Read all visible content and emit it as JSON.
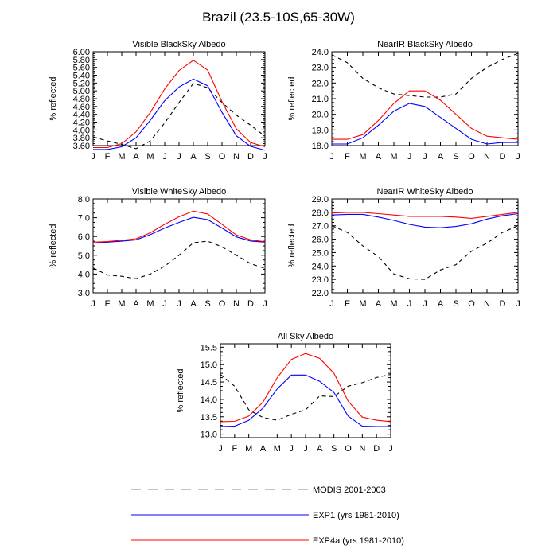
{
  "title": "Brazil (23.5-10S,65-30W)",
  "months": [
    "J",
    "F",
    "M",
    "A",
    "M",
    "J",
    "J",
    "A",
    "S",
    "O",
    "N",
    "D",
    "J"
  ],
  "legend": [
    {
      "label": "MODIS 2001-2003",
      "color": "#000000",
      "dash": true
    },
    {
      "label": "EXP1 (yrs 1981-2010)",
      "color": "#0000ff",
      "dash": false
    },
    {
      "label": "EXP4a (yrs 1981-2010)",
      "color": "#ff0000",
      "dash": false
    }
  ],
  "chart_data": [
    {
      "type": "line",
      "title": "Visible BlackSky Albedo",
      "ylabel": "% reflected",
      "ylim": [
        3.6,
        6.0
      ],
      "yticks": [
        3.6,
        3.8,
        4.0,
        4.2,
        4.4,
        4.6,
        4.8,
        5.0,
        5.2,
        5.4,
        5.6,
        5.8,
        6.0
      ],
      "ytick_labels": [
        "3.60",
        "3.80",
        "4.00",
        "4.20",
        "4.40",
        "4.60",
        "4.80",
        "5.00",
        "5.20",
        "5.40",
        "5.60",
        "5.80",
        "6.00"
      ],
      "series": [
        {
          "name": "MODIS 2001-2003",
          "values": [
            3.82,
            3.72,
            3.63,
            3.52,
            3.72,
            4.18,
            4.7,
            5.19,
            5.08,
            4.7,
            4.38,
            4.12,
            3.84
          ]
        },
        {
          "name": "EXP1 (yrs 1981-2010)",
          "values": [
            3.5,
            3.5,
            3.57,
            3.8,
            4.25,
            4.75,
            5.1,
            5.3,
            5.13,
            4.45,
            3.85,
            3.58,
            3.48
          ]
        },
        {
          "name": "EXP4a (yrs 1981-2010)",
          "values": [
            3.55,
            3.55,
            3.65,
            3.95,
            4.45,
            5.05,
            5.52,
            5.78,
            5.53,
            4.72,
            4.03,
            3.68,
            3.57
          ]
        }
      ]
    },
    {
      "type": "line",
      "title": "NearIR BlackSky Albedo",
      "ylabel": "% reflected",
      "ylim": [
        18.0,
        24.0
      ],
      "yticks": [
        18.0,
        19.0,
        20.0,
        21.0,
        22.0,
        23.0,
        24.0
      ],
      "ytick_labels": [
        "18.0",
        "19.0",
        "20.0",
        "21.0",
        "22.0",
        "23.0",
        "24.0"
      ],
      "series": [
        {
          "name": "MODIS 2001-2003",
          "values": [
            23.8,
            23.3,
            22.3,
            21.7,
            21.3,
            21.2,
            21.1,
            21.1,
            21.3,
            22.3,
            23.0,
            23.5,
            23.9
          ]
        },
        {
          "name": "EXP1 (yrs 1981-2010)",
          "values": [
            18.1,
            18.1,
            18.5,
            19.3,
            20.2,
            20.7,
            20.5,
            19.8,
            19.1,
            18.4,
            18.1,
            18.2,
            18.2
          ]
        },
        {
          "name": "EXP4a (yrs 1981-2010)",
          "values": [
            18.4,
            18.4,
            18.7,
            19.6,
            20.7,
            21.5,
            21.5,
            20.9,
            20.0,
            19.1,
            18.6,
            18.5,
            18.4
          ]
        }
      ]
    },
    {
      "type": "line",
      "title": "Visible WhiteSky Albedo",
      "ylabel": "% reflected",
      "ylim": [
        3.0,
        8.0
      ],
      "yticks": [
        3.0,
        4.0,
        5.0,
        6.0,
        7.0,
        8.0
      ],
      "ytick_labels": [
        "3.0",
        "4.0",
        "5.0",
        "6.0",
        "7.0",
        "8.0"
      ],
      "series": [
        {
          "name": "MODIS 2001-2003",
          "values": [
            4.32,
            3.95,
            3.88,
            3.75,
            4.0,
            4.42,
            5.0,
            5.67,
            5.75,
            5.45,
            5.0,
            4.55,
            4.3
          ]
        },
        {
          "name": "EXP1 (yrs 1981-2010)",
          "values": [
            5.65,
            5.7,
            5.75,
            5.82,
            6.1,
            6.45,
            6.75,
            7.02,
            6.9,
            6.45,
            5.98,
            5.76,
            5.7
          ]
        },
        {
          "name": "EXP4a (yrs 1981-2010)",
          "values": [
            5.7,
            5.73,
            5.8,
            5.88,
            6.2,
            6.65,
            7.05,
            7.35,
            7.2,
            6.65,
            6.08,
            5.82,
            5.72
          ]
        }
      ]
    },
    {
      "type": "line",
      "title": "NearIR WhiteSky Albedo",
      "ylabel": "% reflected",
      "ylim": [
        22.0,
        29.0
      ],
      "yticks": [
        22.0,
        23.0,
        24.0,
        25.0,
        26.0,
        27.0,
        28.0,
        29.0
      ],
      "ytick_labels": [
        "22.0",
        "23.0",
        "24.0",
        "25.0",
        "26.0",
        "27.0",
        "28.0",
        "29.0"
      ],
      "series": [
        {
          "name": "MODIS 2001-2003",
          "values": [
            27.0,
            26.5,
            25.5,
            24.7,
            23.4,
            23.05,
            23.0,
            23.7,
            24.1,
            25.1,
            25.7,
            26.5,
            27.0
          ]
        },
        {
          "name": "EXP1 (yrs 1981-2010)",
          "values": [
            27.8,
            27.85,
            27.85,
            27.65,
            27.4,
            27.1,
            26.9,
            26.85,
            26.95,
            27.15,
            27.5,
            27.75,
            27.9
          ]
        },
        {
          "name": "EXP4a (yrs 1981-2010)",
          "values": [
            27.95,
            28.0,
            28.0,
            27.9,
            27.8,
            27.7,
            27.7,
            27.7,
            27.65,
            27.55,
            27.7,
            27.85,
            28.0
          ]
        }
      ]
    },
    {
      "type": "line",
      "title": "All Sky Albedo",
      "ylabel": "% reflected",
      "ylim": [
        12.9,
        15.6
      ],
      "yticks": [
        13.0,
        13.5,
        14.0,
        14.5,
        15.0,
        15.5
      ],
      "ytick_labels": [
        "13.0",
        "13.5",
        "14.0",
        "14.5",
        "15.0",
        "15.5"
      ],
      "series": [
        {
          "name": "MODIS 2001-2003",
          "values": [
            14.72,
            14.38,
            13.7,
            13.48,
            13.4,
            13.57,
            13.7,
            14.1,
            14.08,
            14.38,
            14.48,
            14.63,
            14.72
          ]
        },
        {
          "name": "EXP1 (yrs 1981-2010)",
          "values": [
            13.22,
            13.23,
            13.4,
            13.75,
            14.3,
            14.7,
            14.7,
            14.52,
            14.2,
            13.52,
            13.23,
            13.22,
            13.22
          ]
        },
        {
          "name": "EXP4a (yrs 1981-2010)",
          "values": [
            13.36,
            13.37,
            13.52,
            13.92,
            14.62,
            15.15,
            15.32,
            15.18,
            14.75,
            13.95,
            13.49,
            13.4,
            13.36
          ]
        }
      ]
    }
  ]
}
